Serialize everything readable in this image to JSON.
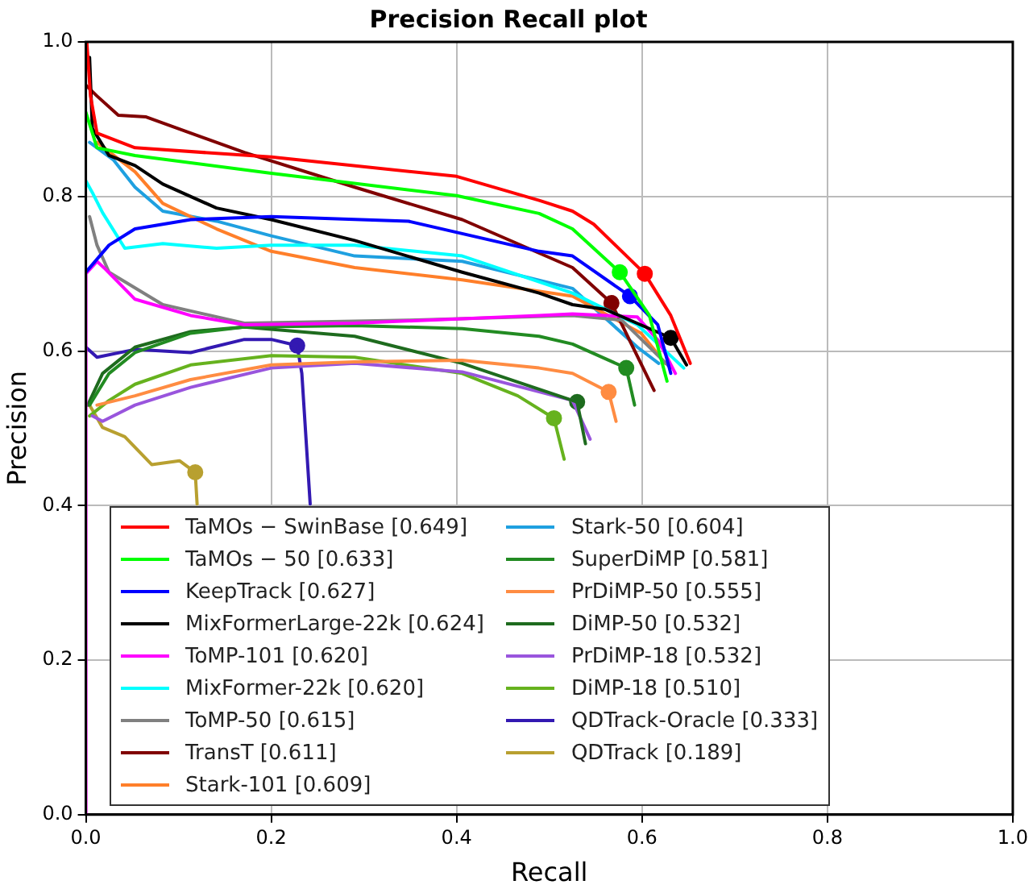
{
  "chart_data": {
    "type": "line",
    "title": "Precision Recall plot",
    "xlabel": "Recall",
    "ylabel": "Precision",
    "xlim": [
      0,
      1
    ],
    "ylim": [
      0,
      1
    ],
    "xticks": [
      {
        "value": 0,
        "label": "0.0"
      },
      0.2,
      0.4,
      0.6,
      0.8,
      {
        "value": 1,
        "label": "1.0"
      }
    ],
    "yticks": [
      {
        "value": 0,
        "label": "0.0"
      },
      0.2,
      0.4,
      0.6,
      0.8,
      {
        "value": 1,
        "label": "1.0"
      }
    ],
    "grid": true,
    "legend": "bottom left",
    "marker": "none",
    "line_style": "solid",
    "series": [
      {
        "name": "TaMOs − SwinBase [0.649]",
        "color": "#ff0000",
        "x": [
          0.001,
          0.005,
          0.012,
          0.053,
          0.2,
          0.4,
          0.489,
          0.525,
          0.548,
          0.603,
          0.631,
          0.652
        ],
        "values": [
          1.0,
          0.93,
          0.882,
          0.863,
          0.851,
          0.826,
          0.795,
          0.781,
          0.764,
          0.7,
          0.646,
          0.584
        ]
      },
      {
        "name": "TaMOs − 50 [0.633]",
        "color": "#00ff00",
        "x": [
          0.0,
          0.012,
          0.053,
          0.2,
          0.4,
          0.489,
          0.525,
          0.576,
          0.608,
          0.627
        ],
        "values": [
          0.909,
          0.863,
          0.853,
          0.83,
          0.801,
          0.778,
          0.758,
          0.702,
          0.646,
          0.561
        ]
      },
      {
        "name": "KeepTrack [0.627]",
        "color": "#0000ff",
        "x": [
          0.0,
          0.025,
          0.053,
          0.113,
          0.2,
          0.348,
          0.489,
          0.525,
          0.587,
          0.617,
          0.631
        ],
        "values": [
          0.702,
          0.737,
          0.758,
          0.77,
          0.774,
          0.768,
          0.729,
          0.723,
          0.671,
          0.634,
          0.571
        ]
      },
      {
        "name": "MixFormerLarge-22k [0.624]",
        "color": "#000000",
        "x": [
          0.004,
          0.007,
          0.025,
          0.053,
          0.083,
          0.141,
          0.2,
          0.29,
          0.406,
          0.489,
          0.525,
          0.56,
          0.631,
          0.648
        ],
        "values": [
          0.98,
          0.888,
          0.853,
          0.84,
          0.816,
          0.785,
          0.77,
          0.743,
          0.702,
          0.675,
          0.66,
          0.654,
          0.617,
          0.582
        ]
      },
      {
        "name": "ToMP-101 [0.620]",
        "color": "#ff00ff",
        "x": [
          0.0,
          0.0,
          0.012,
          0.021,
          0.053,
          0.113,
          0.171,
          0.29,
          0.489,
          0.525,
          0.595,
          0.618,
          0.636
        ],
        "values": [
          0.0,
          0.7,
          0.716,
          0.706,
          0.667,
          0.646,
          0.634,
          0.636,
          0.646,
          0.648,
          0.644,
          0.613,
          0.571
        ]
      },
      {
        "name": "MixFormer-22k [0.620]",
        "color": "#00ffff",
        "x": [
          0.0,
          0.007,
          0.018,
          0.042,
          0.083,
          0.141,
          0.2,
          0.29,
          0.406,
          0.525,
          0.595,
          0.645
        ],
        "values": [
          0.82,
          0.805,
          0.779,
          0.733,
          0.739,
          0.733,
          0.737,
          0.737,
          0.723,
          0.675,
          0.634,
          0.578
        ]
      },
      {
        "name": "ToMP-50 [0.615]",
        "color": "#808080",
        "x": [
          0.004,
          0.012,
          0.025,
          0.083,
          0.171,
          0.348,
          0.525,
          0.578,
          0.631
        ],
        "values": [
          0.774,
          0.737,
          0.702,
          0.66,
          0.636,
          0.64,
          0.646,
          0.64,
          0.578
        ]
      },
      {
        "name": "TransT [0.611]",
        "color": "#800000",
        "x": [
          0.0,
          0.012,
          0.035,
          0.065,
          0.113,
          0.171,
          0.29,
          0.406,
          0.525,
          0.567,
          0.613
        ],
        "values": [
          0.944,
          0.93,
          0.905,
          0.903,
          0.882,
          0.857,
          0.812,
          0.77,
          0.708,
          0.662,
          0.549
        ]
      },
      {
        "name": "Stark-101 [0.609]",
        "color": "#ff7f2a",
        "x": [
          0.012,
          0.053,
          0.083,
          0.141,
          0.2,
          0.29,
          0.406,
          0.525,
          0.599,
          0.625
        ],
        "values": [
          0.87,
          0.832,
          0.791,
          0.758,
          0.729,
          0.708,
          0.692,
          0.671,
          0.623,
          0.584
        ]
      },
      {
        "name": "Stark-50 [0.604]",
        "color": "#1fa0e0",
        "x": [
          0.004,
          0.03,
          0.053,
          0.083,
          0.141,
          0.2,
          0.29,
          0.406,
          0.525,
          0.595,
          0.618
        ],
        "values": [
          0.87,
          0.847,
          0.812,
          0.781,
          0.768,
          0.749,
          0.723,
          0.716,
          0.681,
          0.605,
          0.584
        ]
      },
      {
        "name": "SuperDiMP [0.581]",
        "color": "#228b22",
        "x": [
          0.004,
          0.025,
          0.053,
          0.113,
          0.171,
          0.29,
          0.406,
          0.489,
          0.525,
          0.583,
          0.592
        ],
        "values": [
          0.53,
          0.571,
          0.598,
          0.623,
          0.631,
          0.633,
          0.629,
          0.619,
          0.609,
          0.578,
          0.53
        ]
      },
      {
        "name": "PrDiMP-50 [0.555]",
        "color": "#ff8c42",
        "x": [
          0.012,
          0.053,
          0.113,
          0.2,
          0.29,
          0.406,
          0.489,
          0.525,
          0.564,
          0.572
        ],
        "values": [
          0.53,
          0.542,
          0.563,
          0.582,
          0.586,
          0.588,
          0.578,
          0.571,
          0.547,
          0.509
        ]
      },
      {
        "name": "DiMP-50 [0.532]",
        "color": "#1e6b1e",
        "x": [
          0.002,
          0.018,
          0.053,
          0.113,
          0.171,
          0.29,
          0.406,
          0.525,
          0.53,
          0.539
        ],
        "values": [
          0.53,
          0.571,
          0.605,
          0.625,
          0.631,
          0.619,
          0.584,
          0.536,
          0.534,
          0.48
        ]
      },
      {
        "name": "PrDiMP-18 [0.532]",
        "color": "#9955dd",
        "x": [
          0.007,
          0.018,
          0.053,
          0.113,
          0.2,
          0.29,
          0.406,
          0.525,
          0.544
        ],
        "values": [
          0.516,
          0.509,
          0.53,
          0.553,
          0.578,
          0.584,
          0.573,
          0.536,
          0.486
        ]
      },
      {
        "name": "DiMP-18 [0.510]",
        "color": "#66b21e",
        "x": [
          0.004,
          0.025,
          0.053,
          0.113,
          0.2,
          0.29,
          0.406,
          0.466,
          0.505,
          0.516
        ],
        "values": [
          0.516,
          0.536,
          0.557,
          0.582,
          0.594,
          0.592,
          0.571,
          0.542,
          0.513,
          0.46
        ]
      },
      {
        "name": "QDTrack-Oracle [0.333]",
        "color": "#3319b2",
        "x": [
          0.0,
          0.012,
          0.053,
          0.113,
          0.171,
          0.2,
          0.228,
          0.233,
          0.242
        ],
        "values": [
          0.605,
          0.592,
          0.602,
          0.598,
          0.615,
          0.615,
          0.607,
          0.571,
          0.402
        ]
      },
      {
        "name": "QDTrack [0.189]",
        "color": "#b8a030",
        "x": [
          0.004,
          0.018,
          0.042,
          0.071,
          0.101,
          0.118,
          0.12
        ],
        "values": [
          0.53,
          0.501,
          0.489,
          0.453,
          0.458,
          0.443,
          0.402
        ]
      },
      {
        "type": "scatter",
        "marker": "circle",
        "x": [
          0.603,
          0.576,
          0.587,
          0.567,
          0.631,
          0.583,
          0.564,
          0.53,
          0.505,
          0.228,
          0.118
        ],
        "values": [
          0.7,
          0.702,
          0.671,
          0.662,
          0.617,
          0.578,
          0.547,
          0.534,
          0.513,
          0.607,
          0.443
        ],
        "colors": [
          "#ff0000",
          "#00ff00",
          "#0000ff",
          "#800000",
          "#000000",
          "#228b22",
          "#ff8c42",
          "#1e6b1e",
          "#66b21e",
          "#3319b2",
          "#b8a030"
        ]
      }
    ]
  }
}
